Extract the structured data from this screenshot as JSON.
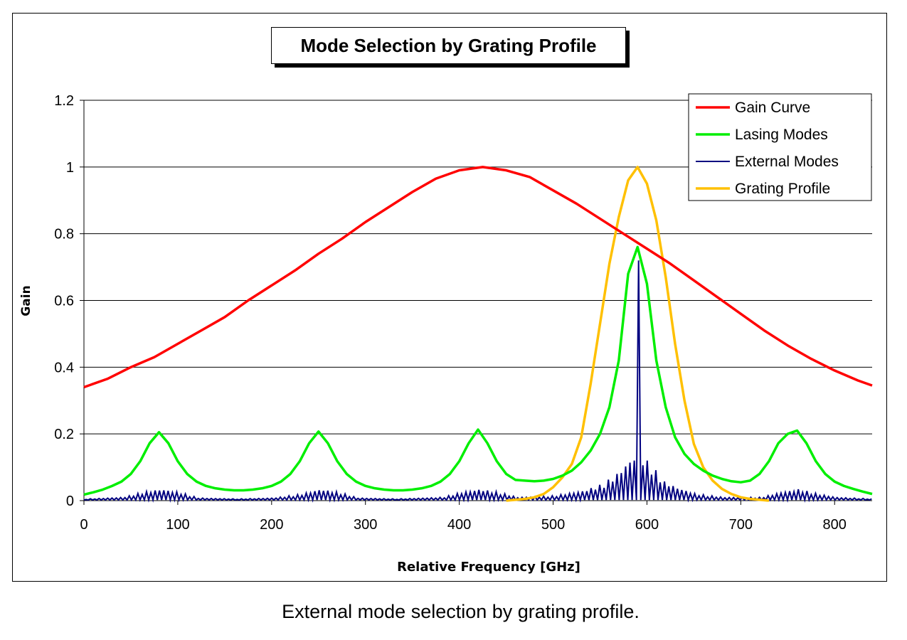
{
  "chart_data": {
    "type": "line",
    "title": "Mode Selection by Grating Profile",
    "xlabel": "Relative Frequency [GHz]",
    "ylabel": "Gain",
    "xlim": [
      0,
      840
    ],
    "ylim": [
      0,
      1.2
    ],
    "xticks": [
      0,
      100,
      200,
      300,
      400,
      500,
      600,
      700,
      800
    ],
    "xtick_labels": [
      "0",
      "100",
      "200",
      "300",
      "400",
      "500",
      "600",
      "700",
      "800"
    ],
    "yticks": [
      0,
      0.2,
      0.4,
      0.6,
      0.8,
      1,
      1.2
    ],
    "ytick_labels": [
      "0",
      "0.2",
      "0.4",
      "0.6",
      "0.8",
      "1",
      "1.2"
    ],
    "grid": "horizontal",
    "legend_position": "top-right",
    "series": [
      {
        "name": "Gain Curve",
        "color": "#ff0000",
        "x": [
          0,
          25,
          50,
          75,
          100,
          125,
          150,
          175,
          200,
          225,
          250,
          275,
          300,
          325,
          350,
          375,
          400,
          425,
          450,
          475,
          500,
          525,
          550,
          575,
          600,
          625,
          650,
          675,
          700,
          725,
          750,
          775,
          800,
          825,
          840
        ],
        "y": [
          0.34,
          0.365,
          0.4,
          0.43,
          0.47,
          0.51,
          0.55,
          0.6,
          0.645,
          0.69,
          0.74,
          0.785,
          0.835,
          0.88,
          0.925,
          0.965,
          0.99,
          1.0,
          0.99,
          0.97,
          0.93,
          0.89,
          0.845,
          0.8,
          0.755,
          0.71,
          0.66,
          0.61,
          0.56,
          0.51,
          0.465,
          0.425,
          0.39,
          0.36,
          0.345
        ]
      },
      {
        "name": "Lasing Modes",
        "color": "#00ee00",
        "step": 10,
        "y": [
          0.018,
          0.025,
          0.033,
          0.044,
          0.057,
          0.08,
          0.118,
          0.172,
          0.205,
          0.172,
          0.118,
          0.08,
          0.057,
          0.044,
          0.037,
          0.033,
          0.031,
          0.031,
          0.033,
          0.037,
          0.044,
          0.057,
          0.08,
          0.118,
          0.172,
          0.207,
          0.172,
          0.118,
          0.08,
          0.057,
          0.044,
          0.037,
          0.033,
          0.031,
          0.031,
          0.033,
          0.037,
          0.044,
          0.057,
          0.08,
          0.118,
          0.172,
          0.213,
          0.172,
          0.118,
          0.08,
          0.062,
          0.06,
          0.058,
          0.06,
          0.065,
          0.075,
          0.09,
          0.115,
          0.15,
          0.2,
          0.28,
          0.42,
          0.68,
          0.76,
          0.65,
          0.42,
          0.28,
          0.19,
          0.14,
          0.11,
          0.09,
          0.075,
          0.065,
          0.058,
          0.055,
          0.06,
          0.08,
          0.118,
          0.172,
          0.2,
          0.21,
          0.172,
          0.118,
          0.08,
          0.057,
          0.044,
          0.035,
          0.027,
          0.02
        ]
      },
      {
        "name": "External Modes",
        "color": "#000080",
        "mode_spacing": 4.6,
        "envelope_x": [
          0,
          40,
          60,
          80,
          100,
          120,
          160,
          200,
          230,
          250,
          270,
          290,
          330,
          380,
          400,
          420,
          440,
          460,
          500,
          530,
          550,
          565,
          575,
          585,
          595,
          605,
          615,
          630,
          650,
          680,
          720,
          740,
          760,
          780,
          800,
          840
        ],
        "envelope_y": [
          0.005,
          0.01,
          0.025,
          0.035,
          0.025,
          0.008,
          0.005,
          0.008,
          0.02,
          0.035,
          0.025,
          0.008,
          0.005,
          0.01,
          0.025,
          0.035,
          0.025,
          0.01,
          0.015,
          0.03,
          0.05,
          0.08,
          0.11,
          0.14,
          0.13,
          0.1,
          0.06,
          0.04,
          0.02,
          0.01,
          0.01,
          0.025,
          0.035,
          0.02,
          0.01,
          0.005
        ],
        "main_peak": {
          "x": 591,
          "y": 0.72
        }
      },
      {
        "name": "Grating Profile",
        "color": "#ffc000",
        "x": [
          450,
          470,
          480,
          490,
          500,
          510,
          520,
          530,
          540,
          550,
          560,
          570,
          580,
          590,
          600,
          610,
          620,
          630,
          640,
          650,
          660,
          670,
          680,
          690,
          700,
          710,
          730
        ],
        "y": [
          0,
          0.005,
          0.01,
          0.02,
          0.04,
          0.07,
          0.11,
          0.19,
          0.35,
          0.53,
          0.71,
          0.85,
          0.96,
          1.0,
          0.95,
          0.84,
          0.67,
          0.47,
          0.3,
          0.17,
          0.1,
          0.06,
          0.035,
          0.02,
          0.01,
          0.005,
          0
        ]
      }
    ]
  },
  "caption": "External mode selection by grating profile."
}
